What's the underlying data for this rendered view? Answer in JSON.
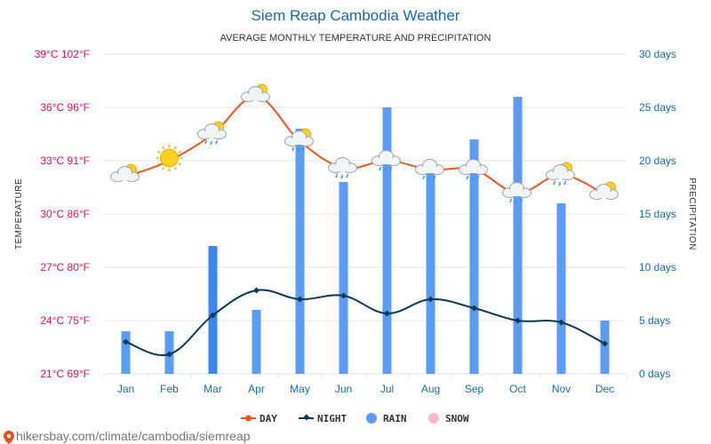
{
  "header": {
    "title": "Siem Reap Cambodia Weather",
    "subtitle": "AVERAGE MONTHLY TEMPERATURE AND PRECIPITATION"
  },
  "source_text": "hikersbay.com/climate/cambodia/siemreap",
  "colors": {
    "day": "#f0541e",
    "night": "#0b3a52",
    "rain": "#5b9cf6",
    "rain_highlight": "#3f85f2",
    "snow": "#ffb6c8",
    "left_axis": "#e0115f",
    "right_axis": "#1a6aa8",
    "grid": "#e6e6e6"
  },
  "chart_data": {
    "type": "line",
    "title": "Siem Reap Cambodia Weather",
    "subtitle": "AVERAGE MONTHLY TEMPERATURE AND PRECIPITATION",
    "categories": [
      "Jan",
      "Feb",
      "Mar",
      "Apr",
      "May",
      "Jun",
      "Jul",
      "Aug",
      "Sep",
      "Oct",
      "Nov",
      "Dec"
    ],
    "y_left": {
      "label": "TEMPERATURE",
      "unit": "°C",
      "ylim": [
        21,
        39
      ],
      "ticks": [
        21,
        24,
        27,
        30,
        33,
        36,
        39
      ],
      "tick_labels": [
        "21°C 69°F",
        "24°C 75°F",
        "27°C 80°F",
        "30°C 86°F",
        "33°C 91°F",
        "36°C 96°F",
        "39°C 102°F"
      ]
    },
    "y_right": {
      "label": "PRECIPITATION",
      "unit": "days",
      "ylim": [
        0,
        30
      ],
      "ticks": [
        0,
        5,
        10,
        15,
        20,
        25,
        30
      ],
      "tick_labels": [
        "0 days",
        "5 days",
        "10 days",
        "15 days",
        "20 days",
        "25 days",
        "30 days"
      ]
    },
    "series": [
      {
        "name": "DAY",
        "type": "line",
        "axis": "left",
        "values": [
          32.1,
          33.0,
          34.5,
          36.6,
          34.1,
          32.6,
          33.0,
          32.5,
          32.5,
          31.2,
          32.2,
          31.1
        ]
      },
      {
        "name": "NIGHT",
        "type": "line",
        "axis": "left",
        "values": [
          22.8,
          22.1,
          24.3,
          25.7,
          25.2,
          25.4,
          24.4,
          25.2,
          24.7,
          24.0,
          23.9,
          22.7
        ]
      },
      {
        "name": "RAIN",
        "type": "bar",
        "axis": "right",
        "values": [
          4,
          4,
          12,
          6,
          23,
          18,
          25,
          19,
          22,
          26,
          16,
          5
        ]
      },
      {
        "name": "SNOW",
        "type": "bar",
        "axis": "right",
        "values": [
          0,
          0,
          0,
          0,
          0,
          0,
          0,
          0,
          0,
          0,
          0,
          0
        ]
      }
    ],
    "weather_icons": [
      "sun-cloud",
      "sun",
      "sun-cloud-rain",
      "sun-cloud",
      "sun-cloud-rain",
      "cloud-rain",
      "cloud-rain",
      "cloud-rain",
      "cloud-rain",
      "cloud-rain",
      "sun-cloud-rain",
      "sun-cloud"
    ],
    "legend": [
      "DAY",
      "NIGHT",
      "RAIN",
      "SNOW"
    ],
    "legend_position": "bottom",
    "grid": true
  }
}
